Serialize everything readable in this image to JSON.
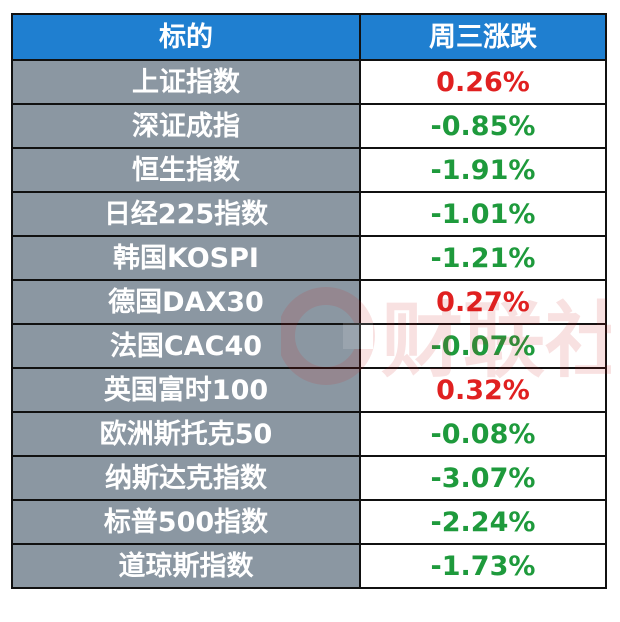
{
  "table": {
    "header": {
      "name": "标的",
      "change": "周三涨跌"
    },
    "rows": [
      {
        "name": "上证指数",
        "change": "0.26%",
        "color": "#e02020"
      },
      {
        "name": "深证成指",
        "change": "-0.85%",
        "color": "#1e9a3c"
      },
      {
        "name": "恒生指数",
        "change": "-1.91%",
        "color": "#1e9a3c"
      },
      {
        "name": "日经225指数",
        "change": "-1.01%",
        "color": "#1e9a3c"
      },
      {
        "name": "韩国KOSPI",
        "change": "-1.21%",
        "color": "#1e9a3c"
      },
      {
        "name": "德国DAX30",
        "change": "0.27%",
        "color": "#e02020"
      },
      {
        "name": "法国CAC40",
        "change": "-0.07%",
        "color": "#1e9a3c"
      },
      {
        "name": "英国富时100",
        "change": "0.32%",
        "color": "#e02020"
      },
      {
        "name": "欧洲斯托克50",
        "change": "-0.08%",
        "color": "#1e9a3c"
      },
      {
        "name": "纳斯达克指数",
        "change": "-3.07%",
        "color": "#1e9a3c"
      },
      {
        "name": "标普500指数",
        "change": "-2.24%",
        "color": "#1e9a3c"
      },
      {
        "name": "道琼斯指数",
        "change": "-1.73%",
        "color": "#1e9a3c"
      }
    ]
  },
  "colors": {
    "header_bg": "#1f7fd0",
    "name_bg": "#8b97a2",
    "up": "#e02020",
    "down": "#1e9a3c"
  },
  "watermark": {
    "icon": "cls-logo-icon",
    "text": "财联社"
  }
}
